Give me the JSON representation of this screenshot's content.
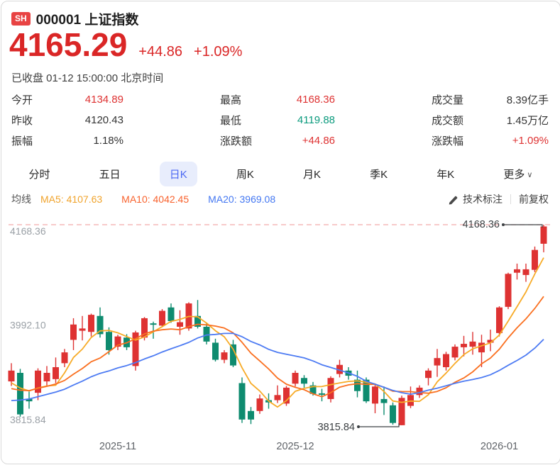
{
  "header": {
    "exchange_badge": "SH",
    "title": "000001 上证指数"
  },
  "price": {
    "current": "4165.29",
    "change": "+44.86",
    "change_percent": "+1.09%"
  },
  "status_line": "已收盘 01-12 15:00:00 北京时间",
  "stats": {
    "columns": [
      {
        "rows": [
          {
            "name": "open",
            "label": "今开",
            "value": "4134.89",
            "color": "red"
          },
          {
            "name": "prev-close",
            "label": "昨收",
            "value": "4120.43",
            "color": "default"
          },
          {
            "name": "amplitude",
            "label": "振幅",
            "value": "1.18%",
            "color": "default"
          }
        ]
      },
      {
        "rows": [
          {
            "name": "high",
            "label": "最高",
            "value": "4168.36",
            "color": "red"
          },
          {
            "name": "low",
            "label": "最低",
            "value": "4119.88",
            "color": "green"
          },
          {
            "name": "change-amt",
            "label": "涨跌额",
            "value": "+44.86",
            "color": "red"
          }
        ]
      },
      {
        "rows": [
          {
            "name": "volume",
            "label": "成交量",
            "value": "8.39亿手",
            "color": "default"
          },
          {
            "name": "turnover",
            "label": "成交额",
            "value": "1.45万亿",
            "color": "default"
          },
          {
            "name": "change-pct",
            "label": "涨跌幅",
            "value": "+1.09%",
            "color": "red"
          }
        ]
      }
    ]
  },
  "tabs": [
    {
      "name": "minute",
      "label": "分时"
    },
    {
      "name": "five-day",
      "label": "五日"
    },
    {
      "name": "daily-k",
      "label": "日K",
      "active": true
    },
    {
      "name": "weekly-k",
      "label": "周K"
    },
    {
      "name": "monthly-k",
      "label": "月K"
    },
    {
      "name": "quarterly-k",
      "label": "季K"
    },
    {
      "name": "yearly-k",
      "label": "年K"
    },
    {
      "name": "more",
      "label": "更多",
      "chevron": "∨"
    }
  ],
  "ma_legend": {
    "title": "均线",
    "items": [
      {
        "name": "ma5",
        "label": "MA5: 4107.63",
        "color": "#f0a32b"
      },
      {
        "name": "ma10",
        "label": "MA10: 4042.45",
        "color": "#f8622d"
      },
      {
        "name": "ma20",
        "label": "MA20: 3969.08",
        "color": "#4377f2"
      }
    ]
  },
  "chart_tools": {
    "annotate_label": "技术标注",
    "adjust_label": "前复权"
  },
  "colors": {
    "badge_red": "#e84343",
    "price_red": "#da2626",
    "red": "#de3232",
    "green": "#0c9b7e",
    "candle_up": "#de3232",
    "candle_down": "#0e8b6f",
    "ma5_line": "#f7ab27",
    "ma10_line": "#fa6f1f",
    "ma20_line": "#4d7bf3",
    "tab_active_fg": "#4b68f3",
    "tab_active_bg": "#e8edfc",
    "dashed_line": "#f2abab",
    "axis_label": "#9aa0a6",
    "x_label": "#5f6368",
    "annotation": "#3c4043"
  },
  "chart_data": {
    "type": "candlestick",
    "title": "上证指数 日K线",
    "value_range": [
      3815.84,
      4168.36
    ],
    "y_axis_labels": [
      {
        "text": "4168.36",
        "value": 4168.36
      },
      {
        "text": "3992.10",
        "value": 3992.1
      },
      {
        "text": "3815.84",
        "value": 3815.84
      }
    ],
    "x_axis_labels": [
      {
        "text": "2025-11",
        "candle_index": 12
      },
      {
        "text": "2025-12",
        "candle_index": 32
      },
      {
        "text": "2026-01",
        "candle_index": 55
      }
    ],
    "high_annotation": {
      "text": "4168.36",
      "value": 4168.36,
      "candle_index": 60
    },
    "low_annotation": {
      "text": "3815.84",
      "value": 3815.84,
      "candle_index": 44
    },
    "moving_averages": {
      "MA5": 4107.63,
      "MA10": 4042.45,
      "MA20": 3969.08
    },
    "ma_seed_closes_estimated": [
      3818,
      3822,
      3828,
      3830,
      3836,
      3842,
      3846,
      3850,
      3855,
      3858,
      3862,
      3866,
      3870,
      3874,
      3878,
      3880,
      3884,
      3886,
      3890
    ],
    "candles_ohlc": [
      [
        3893,
        3925,
        3885,
        3912
      ],
      [
        3908,
        3915,
        3831,
        3835
      ],
      [
        3862,
        3875,
        3845,
        3858
      ],
      [
        3873,
        3916,
        3860,
        3912
      ],
      [
        3893,
        3920,
        3885,
        3908
      ],
      [
        3897,
        3935,
        3890,
        3918
      ],
      [
        3925,
        3950,
        3918,
        3944
      ],
      [
        3966,
        4004,
        3948,
        3993
      ],
      [
        3982,
        4008,
        3965,
        3986
      ],
      [
        3980,
        4012,
        3972,
        4010
      ],
      [
        4008,
        4023,
        3970,
        3976
      ],
      [
        3980,
        3988,
        3940,
        3948
      ],
      [
        3954,
        3975,
        3948,
        3972
      ],
      [
        3970,
        3976,
        3948,
        3953
      ],
      [
        3920,
        3982,
        3912,
        3979
      ],
      [
        3970,
        4006,
        3965,
        4004
      ],
      [
        3995,
        3998,
        3968,
        3993
      ],
      [
        3991,
        4020,
        3988,
        4017
      ],
      [
        4023,
        4030,
        3996,
        3999
      ],
      [
        3989,
        4018,
        3975,
        3997
      ],
      [
        3986,
        4032,
        3982,
        4030
      ],
      [
        4008,
        4036,
        3986,
        3989
      ],
      [
        3989,
        3995,
        3958,
        3963
      ],
      [
        3961,
        3968,
        3928,
        3931
      ],
      [
        3931,
        3948,
        3925,
        3944
      ],
      [
        3958,
        3966,
        3918,
        3921
      ],
      [
        3890,
        3900,
        3820,
        3826
      ],
      [
        3841,
        3848,
        3818,
        3826
      ],
      [
        3841,
        3870,
        3836,
        3863
      ],
      [
        3860,
        3872,
        3845,
        3856
      ],
      [
        3860,
        3886,
        3855,
        3869
      ],
      [
        3854,
        3885,
        3850,
        3882
      ],
      [
        3889,
        3912,
        3884,
        3908
      ],
      [
        3899,
        3904,
        3882,
        3889
      ],
      [
        3886,
        3892,
        3868,
        3871
      ],
      [
        3872,
        3880,
        3858,
        3870
      ],
      [
        3862,
        3902,
        3856,
        3899
      ],
      [
        3906,
        3931,
        3900,
        3922
      ],
      [
        3912,
        3918,
        3896,
        3903
      ],
      [
        3896,
        3912,
        3865,
        3876
      ],
      [
        3896,
        3900,
        3855,
        3858
      ],
      [
        3854,
        3888,
        3837,
        3884
      ],
      [
        3862,
        3884,
        3834,
        3855
      ],
      [
        3851,
        3856,
        3817,
        3820
      ],
      [
        3816,
        3868,
        3815.84,
        3864
      ],
      [
        3850,
        3884,
        3846,
        3869
      ],
      [
        3869,
        3886,
        3864,
        3882
      ],
      [
        3899,
        3916,
        3886,
        3912
      ],
      [
        3921,
        3950,
        3901,
        3934
      ],
      [
        3918,
        3945,
        3912,
        3941
      ],
      [
        3935,
        3958,
        3930,
        3954
      ],
      [
        3953,
        3973,
        3937,
        3959
      ],
      [
        3954,
        3980,
        3940,
        3963
      ],
      [
        3944,
        3975,
        3918,
        3961
      ],
      [
        3961,
        3984,
        3946,
        3966
      ],
      [
        3978,
        4025,
        3972,
        4023
      ],
      [
        4024,
        4084,
        4020,
        4082
      ],
      [
        4084,
        4100,
        4072,
        4090
      ],
      [
        4080,
        4100,
        4068,
        4090
      ],
      [
        4089,
        4130,
        4085,
        4124
      ],
      [
        4134.89,
        4168.36,
        4119.88,
        4165.29
      ]
    ]
  }
}
